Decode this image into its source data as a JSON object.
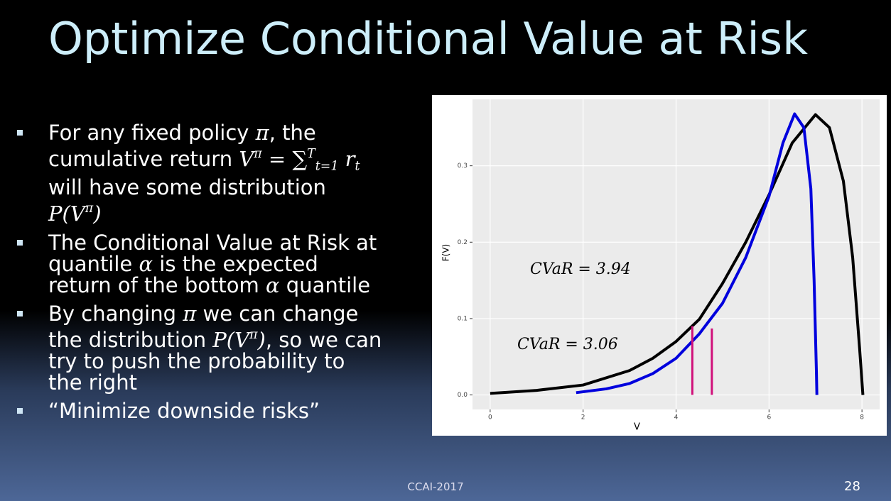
{
  "title": "Optimize Conditional Value at Risk",
  "bullets": [
    {
      "parts": [
        {
          "text": "For any fixed policy "
        },
        {
          "math": "π"
        },
        {
          "text": ", the cumulative return "
        },
        {
          "math": "V"
        },
        {
          "sup": "π"
        },
        {
          "math": " = ∑"
        },
        {
          "sup": "T"
        },
        {
          "sub": "t=1"
        },
        {
          "math": " r"
        },
        {
          "sub": "t"
        },
        {
          "text": " will have some distribution "
        },
        {
          "math": "P(V"
        },
        {
          "sup": "π"
        },
        {
          "math": ")"
        }
      ]
    },
    {
      "parts": [
        {
          "text": "The Conditional Value at Risk at quantile "
        },
        {
          "math": "α"
        },
        {
          "text": " is the expected return of the bottom "
        },
        {
          "math": "α"
        },
        {
          "text": " quantile"
        }
      ]
    },
    {
      "parts": [
        {
          "text": "By changing "
        },
        {
          "math": "π"
        },
        {
          "text": " we can change the distribution "
        },
        {
          "math": "P(V"
        },
        {
          "sup": "π"
        },
        {
          "math": ")"
        },
        {
          "text": ", so we can try to push the probability to the right"
        }
      ]
    },
    {
      "parts": [
        {
          "text": "“Minimize downside risks”"
        }
      ]
    }
  ],
  "footer": {
    "center": "CCAI-2017",
    "page": "28"
  },
  "chart_data": {
    "type": "line",
    "x_label": "V",
    "y_label": "F(V)",
    "xlim": [
      -0.38,
      8.38
    ],
    "ylim": [
      -0.019,
      0.387
    ],
    "xticks": [
      0,
      2,
      4,
      6,
      8
    ],
    "yticks": [
      {
        "value": 0,
        "label": "0.0"
      },
      {
        "value": 0.1,
        "label": "0.1"
      },
      {
        "value": 0.2,
        "label": "0.2"
      },
      {
        "value": 0.3,
        "label": "0.3"
      }
    ],
    "grid": true,
    "series": [
      {
        "color": "#000000",
        "x": [
          0,
          1,
          2,
          3,
          3.5,
          4,
          4.5,
          5,
          5.5,
          6,
          6.5,
          7,
          7.3,
          7.6,
          7.8,
          7.95,
          8.02
        ],
        "values": [
          0.002,
          0.006,
          0.013,
          0.032,
          0.048,
          0.07,
          0.099,
          0.146,
          0.2,
          0.262,
          0.33,
          0.367,
          0.35,
          0.28,
          0.18,
          0.06,
          0.0
        ]
      },
      {
        "color": "#0000dd",
        "x": [
          1.85,
          2.5,
          3,
          3.5,
          4,
          4.5,
          5,
          5.5,
          6,
          6.3,
          6.55,
          6.75,
          6.9,
          6.97,
          7.02,
          7.03
        ],
        "values": [
          0.003,
          0.008,
          0.015,
          0.028,
          0.048,
          0.08,
          0.12,
          0.18,
          0.26,
          0.33,
          0.368,
          0.35,
          0.27,
          0.15,
          0.03,
          0.0
        ]
      }
    ],
    "vlines": [
      {
        "x": 4.35,
        "y": 0.09,
        "color": "#d0107a"
      },
      {
        "x": 4.77,
        "y": 0.087,
        "color": "#d0107a"
      }
    ],
    "annotations": [
      "CVaR = 3.94",
      "CVaR = 3.06"
    ]
  }
}
